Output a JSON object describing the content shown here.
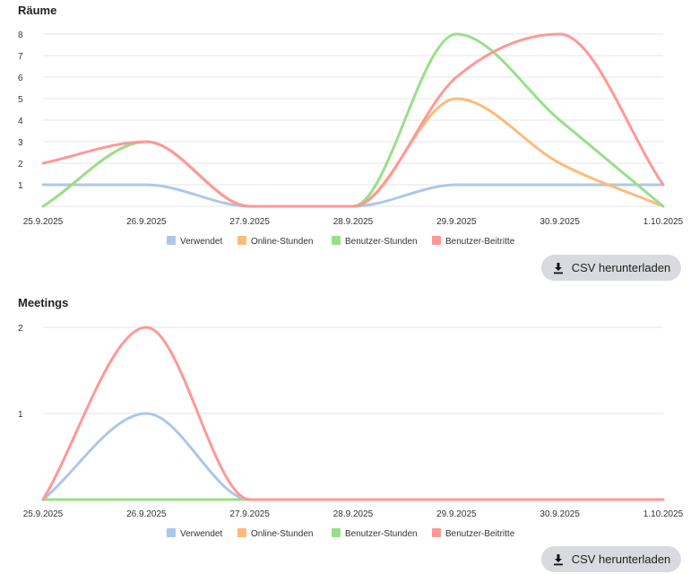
{
  "download_label": "CSV herunterladen",
  "download_icon": "download-icon",
  "chart_data": [
    {
      "type": "line",
      "title": "Räume",
      "x": [
        "25.9.2025",
        "26.9.2025",
        "27.9.2025",
        "28.9.2025",
        "29.9.2025",
        "30.9.2025",
        "1.10.2025"
      ],
      "y_ticks": [
        "1",
        "2",
        "3",
        "4",
        "5",
        "6",
        "7",
        "8"
      ],
      "ylim": [
        0,
        8
      ],
      "grid": true,
      "legend_position": "bottom",
      "series": [
        {
          "name": "Verwendet",
          "color": "#aec7e8",
          "values": [
            1,
            1,
            0,
            0,
            1,
            1,
            1
          ]
        },
        {
          "name": "Online-Stunden",
          "color": "#ffbb78",
          "values": [
            0,
            3,
            0,
            0,
            5,
            2,
            0
          ]
        },
        {
          "name": "Benutzer-Stunden",
          "color": "#98df8a",
          "values": [
            0,
            3,
            0,
            0,
            8,
            4,
            0
          ]
        },
        {
          "name": "Benutzer-Beitritte",
          "color": "#ff9896",
          "values": [
            2,
            3,
            0,
            0,
            6,
            8,
            1
          ]
        }
      ]
    },
    {
      "type": "line",
      "title": "Meetings",
      "x": [
        "25.9.2025",
        "26.9.2025",
        "27.9.2025",
        "28.9.2025",
        "29.9.2025",
        "30.9.2025",
        "1.10.2025"
      ],
      "y_ticks": [
        "1",
        "2"
      ],
      "ylim": [
        0,
        2
      ],
      "grid": true,
      "legend_position": "bottom",
      "series": [
        {
          "name": "Verwendet",
          "color": "#aec7e8",
          "values": [
            0,
            1,
            0,
            0,
            0,
            0,
            0
          ]
        },
        {
          "name": "Online-Stunden",
          "color": "#ffbb78",
          "values": [
            0,
            0,
            0,
            0,
            0,
            0,
            0
          ]
        },
        {
          "name": "Benutzer-Stunden",
          "color": "#98df8a",
          "values": [
            0,
            0,
            0,
            0,
            0,
            0,
            0
          ]
        },
        {
          "name": "Benutzer-Beitritte",
          "color": "#ff9896",
          "values": [
            0,
            2,
            0,
            0,
            0,
            0,
            0
          ]
        }
      ]
    }
  ]
}
